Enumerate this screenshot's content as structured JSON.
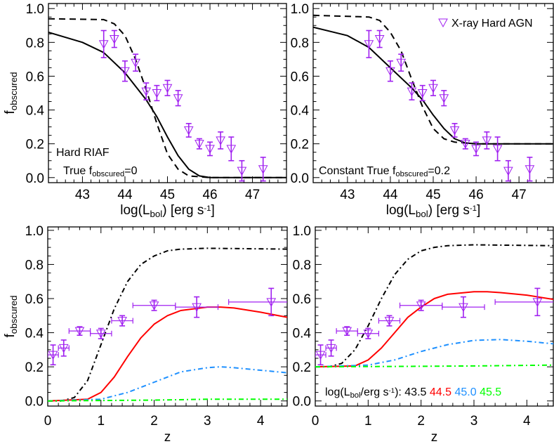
{
  "chart_data": [
    {
      "id": "top-left",
      "type": "line",
      "xlabel": {
        "pre": "log(L",
        "sub": "bol",
        "mid": ") [erg s",
        "sup": "-1",
        "post": "]"
      },
      "ylabel": {
        "main": "f",
        "sub": "obscured"
      },
      "xlim": [
        42.2,
        47.8
      ],
      "ylim": [
        -0.03,
        1.03
      ],
      "xticks": [
        43,
        44,
        45,
        46,
        47
      ],
      "yticks": [
        "0.0",
        "0.2",
        "0.4",
        "0.6",
        "0.8",
        "1.0"
      ],
      "annotations": [
        {
          "text": "Hard RIAF"
        },
        {
          "pre": "True f",
          "sub": "obscured",
          "post": "=0"
        }
      ],
      "series": [
        {
          "style": "solid",
          "color": "#000000",
          "x": [
            42.2,
            43,
            43.5,
            44,
            44.5,
            44.75,
            45,
            45.25,
            45.5,
            45.75,
            46,
            47.8
          ],
          "y": [
            0.86,
            0.8,
            0.74,
            0.62,
            0.46,
            0.36,
            0.24,
            0.13,
            0.05,
            0.01,
            0,
            0
          ]
        },
        {
          "style": "dashed",
          "color": "#000000",
          "x": [
            42.2,
            43.5,
            43.75,
            44,
            44.25,
            44.5,
            44.75,
            45,
            45.25,
            45.5,
            46,
            47.8
          ],
          "y": [
            0.94,
            0.935,
            0.91,
            0.84,
            0.7,
            0.52,
            0.32,
            0.14,
            0.05,
            0.01,
            0,
            0
          ]
        }
      ],
      "points": {
        "color": "#a020f0",
        "marker": "open-down-triangle",
        "x": [
          43.5,
          43.75,
          44.0,
          44.25,
          44.5,
          44.75,
          45.0,
          45.25,
          45.5,
          45.75,
          46.0,
          46.25,
          46.5,
          46.75,
          47.25
        ],
        "y": [
          0.79,
          0.82,
          0.63,
          0.68,
          0.51,
          0.5,
          0.53,
          0.47,
          0.28,
          0.2,
          0.17,
          0.22,
          0.17,
          0.04,
          0.05
        ],
        "yerr": [
          0.08,
          0.05,
          0.06,
          0.05,
          0.05,
          0.045,
          0.045,
          0.045,
          0.04,
          0.03,
          0.04,
          0.05,
          0.07,
          0.06,
          0.07
        ]
      }
    },
    {
      "id": "top-right",
      "type": "line",
      "xlabel": {
        "pre": "log(L",
        "sub": "bol",
        "mid": ") [erg s",
        "sup": "-1",
        "post": "]"
      },
      "xlim": [
        42.2,
        47.8
      ],
      "ylim": [
        -0.03,
        1.03
      ],
      "xticks": [
        43,
        44,
        45,
        46,
        47
      ],
      "yticks": [
        "0.0",
        "0.2",
        "0.4",
        "0.6",
        "0.8",
        "1.0"
      ],
      "legend": {
        "label": "X-ray Hard AGN",
        "placement": "top-right"
      },
      "annotations": [
        {
          "pre": "Constant True f",
          "sub": "obscured",
          "post": "=0.2"
        }
      ],
      "series": [
        {
          "style": "solid",
          "color": "#000000",
          "x": [
            42.2,
            43,
            43.5,
            44,
            44.5,
            44.75,
            45,
            45.25,
            45.5,
            45.75,
            46,
            47.8
          ],
          "y": [
            0.89,
            0.84,
            0.77,
            0.65,
            0.53,
            0.46,
            0.37,
            0.29,
            0.23,
            0.205,
            0.2,
            0.2
          ]
        },
        {
          "style": "dashed",
          "color": "#000000",
          "x": [
            42.2,
            43.5,
            43.75,
            44,
            44.25,
            44.5,
            44.75,
            45,
            45.25,
            45.5,
            46,
            47.8
          ],
          "y": [
            0.96,
            0.95,
            0.93,
            0.86,
            0.75,
            0.58,
            0.42,
            0.29,
            0.23,
            0.21,
            0.2,
            0.2
          ]
        }
      ],
      "points": {
        "color": "#a020f0",
        "marker": "open-down-triangle",
        "x": [
          43.5,
          43.75,
          44.0,
          44.25,
          44.5,
          44.75,
          45.0,
          45.25,
          45.5,
          45.75,
          46.0,
          46.25,
          46.5,
          46.75,
          47.25
        ],
        "y": [
          0.79,
          0.82,
          0.63,
          0.68,
          0.51,
          0.5,
          0.53,
          0.47,
          0.28,
          0.2,
          0.17,
          0.22,
          0.17,
          0.04,
          0.05
        ],
        "yerr": [
          0.08,
          0.05,
          0.06,
          0.05,
          0.05,
          0.045,
          0.045,
          0.045,
          0.04,
          0.03,
          0.04,
          0.05,
          0.07,
          0.06,
          0.07
        ]
      }
    },
    {
      "id": "bottom-left",
      "type": "line",
      "xlabel": {
        "pre": "z"
      },
      "ylabel": {
        "main": "f",
        "sub": "obscured"
      },
      "xlim": [
        0,
        4.5
      ],
      "ylim": [
        -0.03,
        1.02
      ],
      "xticks": [
        0,
        1,
        2,
        3,
        4
      ],
      "yticks": [
        "0.0",
        "0.2",
        "0.4",
        "0.6",
        "0.8",
        "1.0"
      ],
      "series": [
        {
          "name": "43.5",
          "style": "dashdot",
          "color": "#000000",
          "x": [
            0,
            0.25,
            0.5,
            0.75,
            1.0,
            1.25,
            1.5,
            1.75,
            2,
            2.25,
            2.5,
            3,
            4.5
          ],
          "y": [
            0,
            0,
            0.02,
            0.12,
            0.33,
            0.54,
            0.7,
            0.8,
            0.85,
            0.88,
            0.89,
            0.895,
            0.89
          ]
        },
        {
          "name": "44.5",
          "style": "solid",
          "color": "#ff0000",
          "x": [
            0,
            0.75,
            1.0,
            1.25,
            1.5,
            1.75,
            2,
            2.25,
            2.5,
            3,
            3.25,
            3.5,
            4,
            4.5
          ],
          "y": [
            0,
            0.01,
            0.05,
            0.14,
            0.26,
            0.37,
            0.45,
            0.5,
            0.53,
            0.55,
            0.55,
            0.545,
            0.52,
            0.49
          ]
        },
        {
          "name": "45.0",
          "style": "dashdot",
          "color": "#1e90ff",
          "x": [
            0,
            1,
            1.5,
            2,
            2.5,
            3,
            3.25,
            3.5,
            4,
            4.5
          ],
          "y": [
            0,
            0.01,
            0.05,
            0.11,
            0.17,
            0.195,
            0.2,
            0.195,
            0.18,
            0.165
          ]
        },
        {
          "name": "45.5",
          "style": "dashdot",
          "color": "#00ff00",
          "x": [
            0,
            2,
            3,
            4.5
          ],
          "y": [
            0,
            0.005,
            0.01,
            0.01
          ]
        }
      ],
      "points": {
        "color": "#a020f0",
        "marker": "open-down-triangle",
        "x": [
          0.1,
          0.3,
          0.6,
          1.0,
          1.4,
          2.0,
          2.8,
          4.2
        ],
        "xlo": [
          0.0,
          0.2,
          0.4,
          0.8,
          1.2,
          1.6,
          2.4,
          3.4
        ],
        "xhi": [
          0.2,
          0.4,
          0.8,
          1.2,
          1.6,
          2.4,
          3.2,
          5.0
        ],
        "y": [
          0.27,
          0.31,
          0.41,
          0.395,
          0.47,
          0.56,
          0.55,
          0.58
        ],
        "yerr": [
          0.058,
          0.047,
          0.025,
          0.03,
          0.03,
          0.03,
          0.06,
          0.08
        ]
      }
    },
    {
      "id": "bottom-right",
      "type": "line",
      "xlabel": {
        "pre": "z"
      },
      "xlim": [
        0,
        4.5
      ],
      "ylim": [
        -0.03,
        1.02
      ],
      "xticks": [
        0,
        1,
        2,
        3,
        4
      ],
      "yticks": [
        "0.0",
        "0.2",
        "0.4",
        "0.6",
        "0.8",
        "1.0"
      ],
      "legend": {
        "pre": "log(L",
        "sub": "bol",
        "mid": "/erg s",
        "sup": "-1",
        "post": "): ",
        "entries": [
          "43.5",
          "44.5",
          "45.0",
          "45.5"
        ],
        "placement": "bottom"
      },
      "series": [
        {
          "name": "43.5",
          "style": "dashdot",
          "color": "#000000",
          "x": [
            0,
            0.25,
            0.5,
            0.75,
            1,
            1.25,
            1.5,
            1.75,
            2,
            2.25,
            2.5,
            3,
            4.5
          ],
          "y": [
            0.2,
            0.2,
            0.22,
            0.3,
            0.44,
            0.6,
            0.74,
            0.83,
            0.88,
            0.9,
            0.91,
            0.915,
            0.91
          ]
        },
        {
          "name": "44.5",
          "style": "solid",
          "color": "#ff0000",
          "x": [
            0,
            0.75,
            1,
            1.25,
            1.5,
            1.75,
            2,
            2.25,
            2.5,
            3,
            3.25,
            3.5,
            4,
            4.5
          ],
          "y": [
            0.2,
            0.205,
            0.24,
            0.31,
            0.4,
            0.49,
            0.55,
            0.6,
            0.625,
            0.64,
            0.64,
            0.635,
            0.62,
            0.595
          ]
        },
        {
          "name": "45.0",
          "style": "dashdot",
          "color": "#1e90ff",
          "x": [
            0,
            1,
            1.5,
            2,
            2.5,
            3,
            3.5,
            4,
            4.5
          ],
          "y": [
            0.2,
            0.21,
            0.24,
            0.29,
            0.33,
            0.355,
            0.36,
            0.35,
            0.335
          ]
        },
        {
          "name": "45.5",
          "style": "dashdot",
          "color": "#00ff00",
          "x": [
            0,
            2,
            3,
            4.5
          ],
          "y": [
            0.2,
            0.203,
            0.205,
            0.21
          ]
        }
      ],
      "points": {
        "color": "#a020f0",
        "marker": "open-down-triangle",
        "x": [
          0.1,
          0.3,
          0.6,
          1.0,
          1.4,
          2.0,
          2.8,
          4.2
        ],
        "xlo": [
          0.0,
          0.2,
          0.4,
          0.8,
          1.2,
          1.6,
          2.4,
          3.4
        ],
        "xhi": [
          0.2,
          0.4,
          0.8,
          1.2,
          1.6,
          2.4,
          3.2,
          5.0
        ],
        "y": [
          0.27,
          0.31,
          0.41,
          0.395,
          0.47,
          0.56,
          0.55,
          0.58
        ],
        "yerr": [
          0.058,
          0.047,
          0.025,
          0.03,
          0.03,
          0.03,
          0.06,
          0.08
        ]
      }
    }
  ]
}
